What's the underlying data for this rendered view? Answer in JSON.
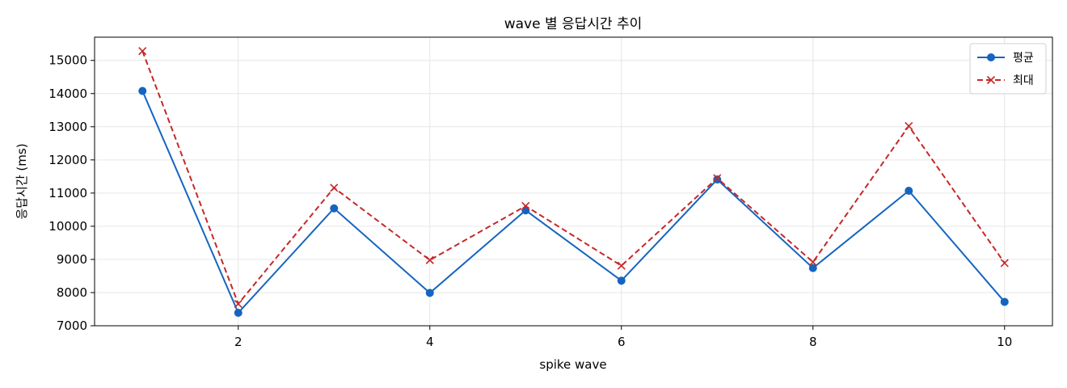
{
  "chart_data": {
    "type": "line",
    "title": "wave 별 응답시간 추이",
    "xlabel": "spike wave",
    "ylabel": "응답시간 (ms)",
    "x": [
      1,
      2,
      3,
      4,
      5,
      6,
      7,
      8,
      9,
      10
    ],
    "xlim": [
      0.5,
      10.5
    ],
    "ylim": [
      7000,
      15700
    ],
    "xticks": [
      2,
      4,
      6,
      8,
      10
    ],
    "yticks": [
      7000,
      8000,
      9000,
      10000,
      11000,
      12000,
      13000,
      14000,
      15000
    ],
    "grid": true,
    "legend_position": "top-right",
    "series": [
      {
        "name": "평균",
        "color": "#1565c0",
        "line_style": "solid",
        "marker": "circle",
        "values": [
          14080,
          7390,
          10540,
          7990,
          10480,
          8360,
          11410,
          8740,
          11070,
          7720
        ]
      },
      {
        "name": "최대",
        "color": "#c62828",
        "line_style": "dashed",
        "marker": "x",
        "values": [
          15280,
          7660,
          11160,
          8980,
          10610,
          8810,
          11450,
          8920,
          13020,
          8890
        ]
      }
    ]
  }
}
